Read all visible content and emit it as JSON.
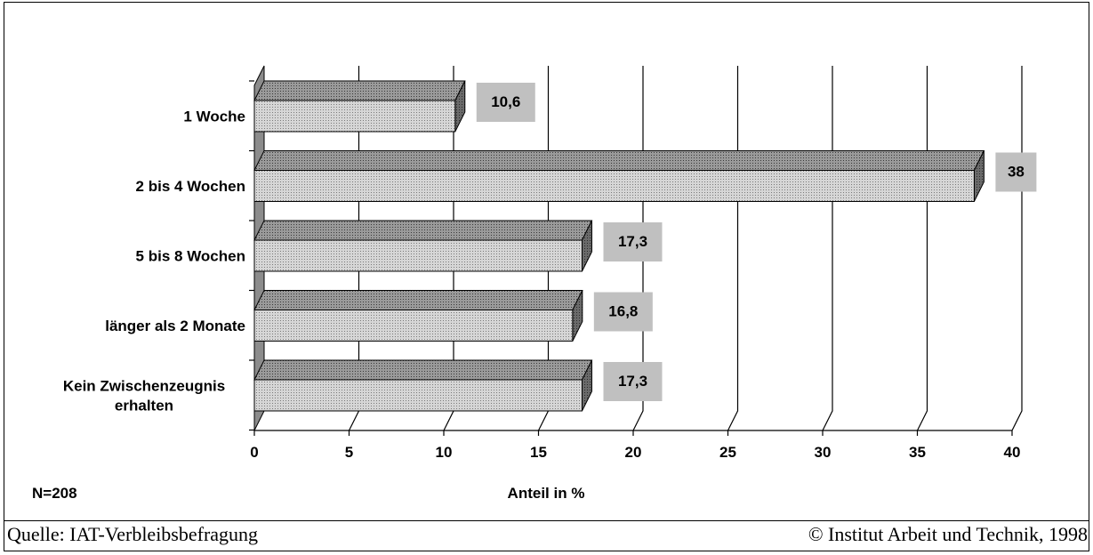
{
  "chart_data": {
    "type": "bar",
    "orientation": "horizontal",
    "style": "3d",
    "categories": [
      "1 Woche",
      "2 bis 4 Wochen",
      "5 bis 8 Wochen",
      "länger als 2 Monate",
      "Kein Zwischenzeugnis erhalten"
    ],
    "values": [
      10.6,
      38,
      17.3,
      16.8,
      17.3
    ],
    "data_labels": [
      "10,6",
      "38",
      "17,3",
      "16,8",
      "17,3"
    ],
    "xlabel": "Anteil in %",
    "xlim": [
      0,
      40
    ],
    "x_ticks": [
      "0",
      "5",
      "10",
      "15",
      "20",
      "25",
      "30",
      "35",
      "40"
    ],
    "grid": true,
    "legend": "none",
    "colors": {
      "bar": "#c8c8c8",
      "bar_dark": "#8a8a8a",
      "label_box": "#c0c0c0",
      "wall": "#808080"
    }
  },
  "annotation": {
    "n": "N=208"
  },
  "footer": {
    "source": "Quelle: IAT-Verbleibsbefragung",
    "copyright": "© Institut Arbeit und Technik, 1998"
  }
}
